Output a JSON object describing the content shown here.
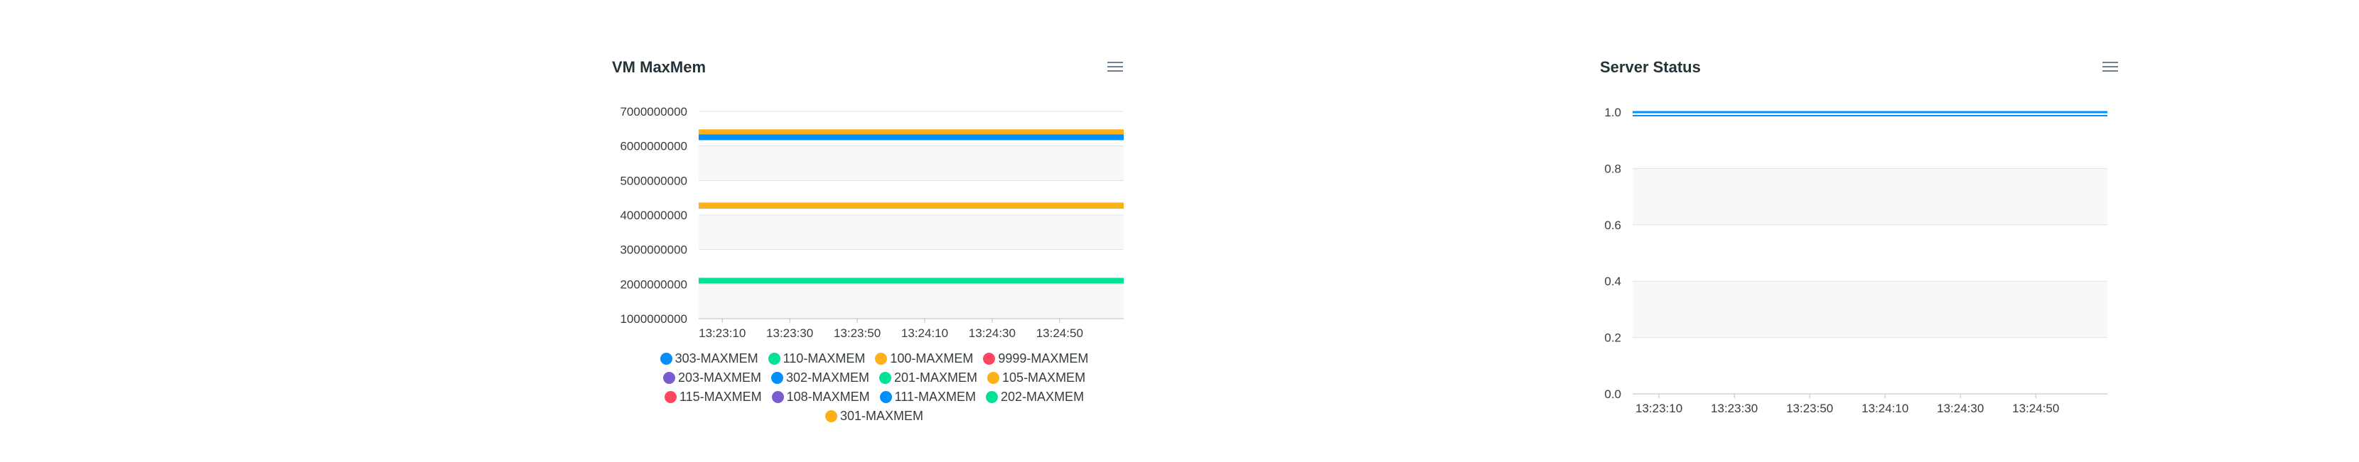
{
  "chart_data": [
    {
      "type": "line",
      "title": "VM MaxMem",
      "xlabel": "",
      "ylabel": "",
      "x": [
        "13:23:10",
        "13:23:30",
        "13:23:50",
        "13:24:10",
        "13:24:30",
        "13:24:50"
      ],
      "ylim": [
        1000000000,
        7000000000
      ],
      "yticks": [
        7000000000,
        6000000000,
        5000000000,
        4000000000,
        3000000000,
        2000000000,
        1000000000
      ],
      "grid": true,
      "legend_position": "bottom",
      "series": [
        {
          "name": "303-MAXMEM",
          "value": 6250000000,
          "color": "#008FFB"
        },
        {
          "name": "110-MAXMEM",
          "value": 2100000000,
          "color": "#00E396"
        },
        {
          "name": "100-MAXMEM",
          "value": 6400000000,
          "color": "#FEB019"
        },
        {
          "name": "9999-MAXMEM",
          "value": 4270000000,
          "color": "#FF4560"
        },
        {
          "name": "203-MAXMEM",
          "value": 4270000000,
          "color": "#775DD0"
        },
        {
          "name": "302-MAXMEM",
          "value": 6250000000,
          "color": "#008FFB"
        },
        {
          "name": "201-MAXMEM",
          "value": 2100000000,
          "color": "#00E396"
        },
        {
          "name": "105-MAXMEM",
          "value": 4270000000,
          "color": "#FEB019"
        },
        {
          "name": "115-MAXMEM",
          "value": 4270000000,
          "color": "#FF4560"
        },
        {
          "name": "108-MAXMEM",
          "value": 4270000000,
          "color": "#775DD0"
        },
        {
          "name": "111-MAXMEM",
          "value": 6250000000,
          "color": "#008FFB"
        },
        {
          "name": "202-MAXMEM",
          "value": 2100000000,
          "color": "#00E396"
        },
        {
          "name": "301-MAXMEM",
          "value": 4270000000,
          "color": "#FEB019"
        }
      ]
    },
    {
      "type": "line",
      "title": "Server Status",
      "xlabel": "",
      "ylabel": "",
      "x": [
        "13:23:10",
        "13:23:30",
        "13:23:50",
        "13:24:10",
        "13:24:30",
        "13:24:50"
      ],
      "ylim": [
        0,
        1
      ],
      "yticks": [
        "1.0",
        "0.8",
        "0.6",
        "0.4",
        "0.2",
        "0.0"
      ],
      "grid": true,
      "series": [
        {
          "value": 1,
          "color": "#008FFB"
        }
      ]
    }
  ]
}
